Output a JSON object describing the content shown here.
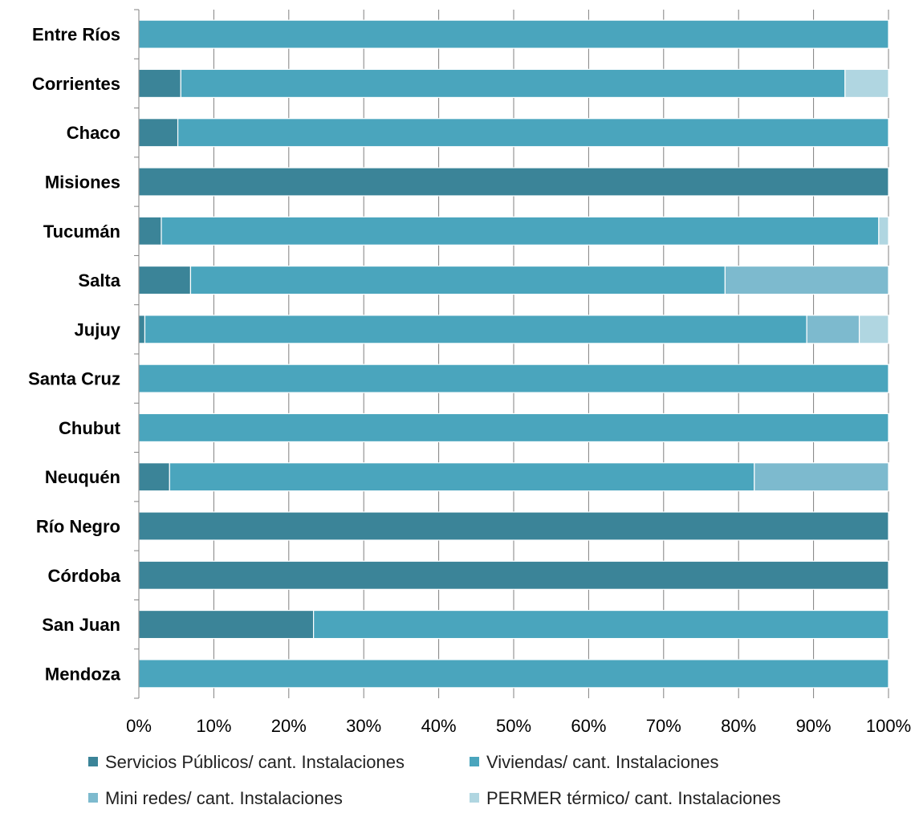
{
  "chart_data": {
    "type": "bar",
    "orientation": "horizontal",
    "stacked": "percent",
    "categories": [
      "Entre Ríos",
      "Corrientes",
      "Chaco",
      "Misiones",
      "Tucumán",
      "Salta",
      "Jujuy",
      "Santa Cruz",
      "Chubut",
      "Neuquén",
      "Río Negro",
      "Córdoba",
      "San Juan",
      "Mendoza"
    ],
    "series": [
      {
        "name": "Servicios Públicos/ cant. Instalaciones",
        "color": "#3b8498",
        "values": [
          0,
          5.6,
          5.2,
          100,
          3.0,
          6.9,
          0.8,
          0,
          0,
          4.1,
          100,
          100,
          23.3,
          0
        ]
      },
      {
        "name": "Viviendas/ cant. Instalaciones",
        "color": "#4aa5bd",
        "values": [
          100,
          88.6,
          94.8,
          0,
          95.7,
          71.3,
          88.3,
          100,
          100,
          78.0,
          0,
          0,
          76.7,
          100
        ]
      },
      {
        "name": "Mini redes/ cant. Instalaciones",
        "color": "#7dbace",
        "values": [
          0,
          0,
          0,
          0,
          0,
          21.8,
          7.0,
          0,
          0,
          17.9,
          0,
          0,
          0,
          0
        ]
      },
      {
        "name": "PERMER térmico/ cant. Instalaciones",
        "color": "#b0d6e1",
        "values": [
          0,
          5.8,
          0,
          0,
          1.3,
          0,
          3.9,
          0,
          0,
          0,
          0,
          0,
          0,
          0
        ]
      }
    ],
    "x_ticks": [
      "0%",
      "10%",
      "20%",
      "30%",
      "40%",
      "50%",
      "60%",
      "70%",
      "80%",
      "90%",
      "100%"
    ],
    "xlim": [
      0,
      100
    ],
    "grid": true,
    "legend_position": "bottom"
  }
}
